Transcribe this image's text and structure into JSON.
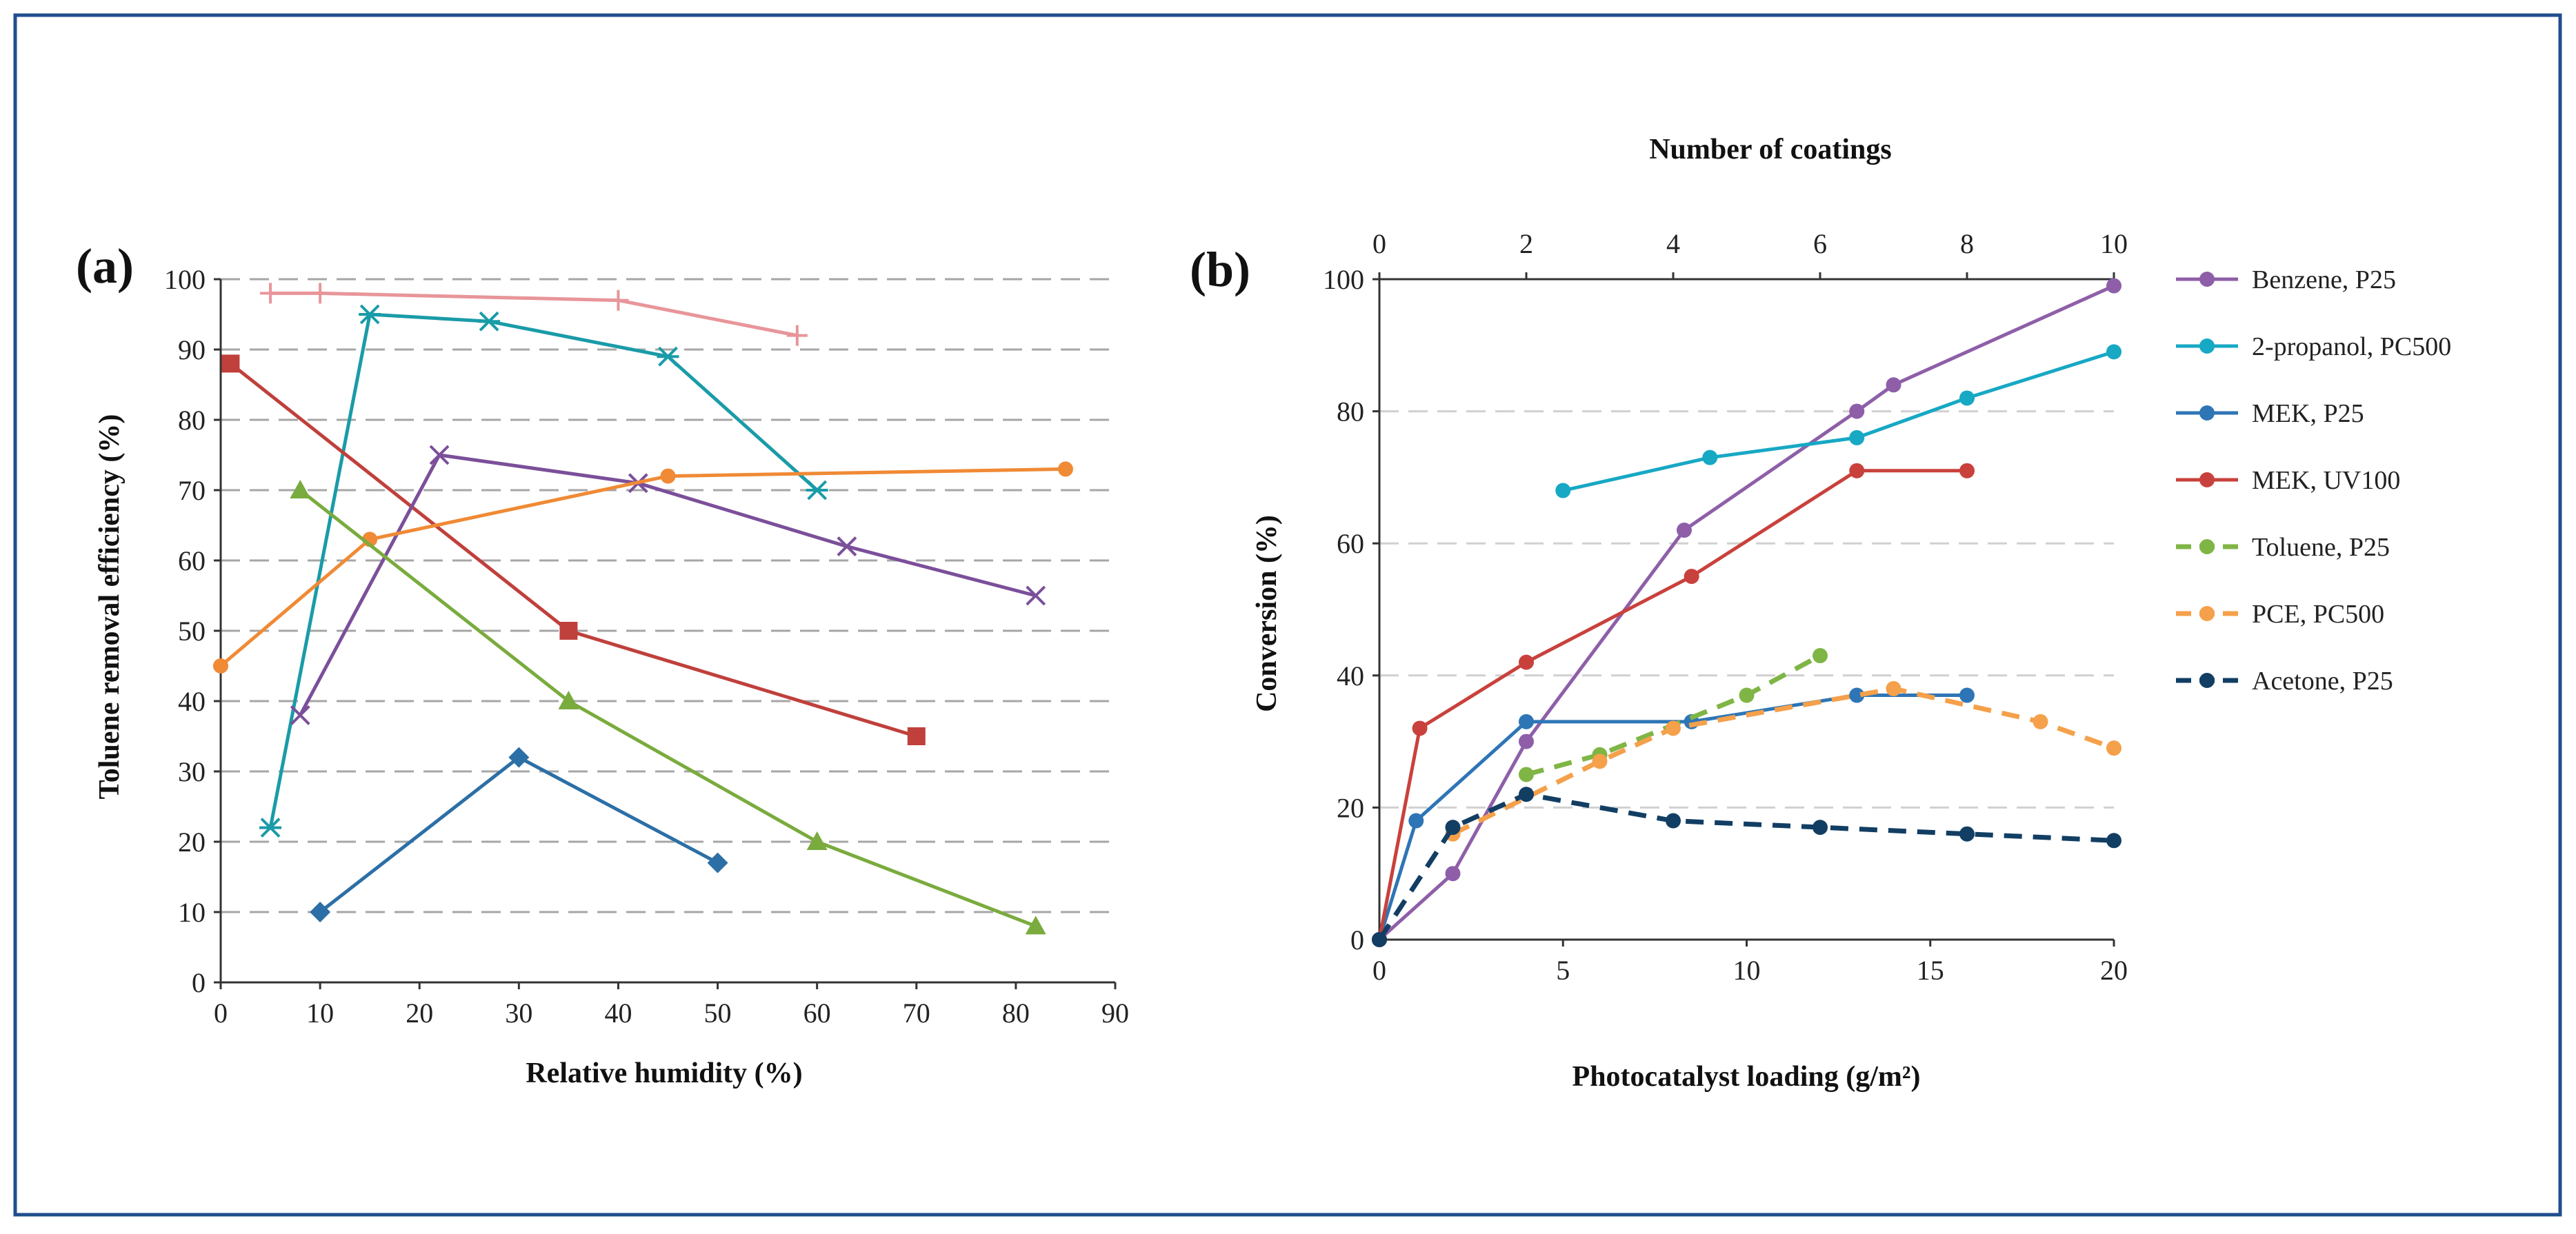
{
  "colors": {
    "frame": "#1f4e8c",
    "grid_a": "#a6a6a6",
    "grid_b": "#d0d0d0"
  },
  "chart_data": [
    {
      "panel_label": "(a)",
      "type": "line",
      "xlabel": "Relative humidity (%)",
      "ylabel": "Toluene removal efficiency (%)",
      "xlim": [
        0,
        90
      ],
      "ylim": [
        0,
        100
      ],
      "xticks": [
        0,
        10,
        20,
        30,
        40,
        50,
        60,
        70,
        80,
        90
      ],
      "yticks": [
        0,
        10,
        20,
        30,
        40,
        50,
        60,
        70,
        80,
        90,
        100
      ],
      "grid": "horizontal dashed",
      "legend": "none",
      "series": [
        {
          "name": "plus series",
          "color": "#e8959a",
          "marker": "plus",
          "dashed": false,
          "points": [
            [
              5,
              98
            ],
            [
              10,
              98
            ],
            [
              40,
              97
            ],
            [
              58,
              92
            ]
          ]
        },
        {
          "name": "asterisk series",
          "color": "#1a9ba8",
          "marker": "asterisk",
          "dashed": false,
          "points": [
            [
              5,
              22
            ],
            [
              15,
              95
            ],
            [
              27,
              94
            ],
            [
              45,
              89
            ],
            [
              60,
              70
            ]
          ]
        },
        {
          "name": "square series",
          "color": "#c0403c",
          "marker": "square",
          "dashed": false,
          "points": [
            [
              1,
              88
            ],
            [
              35,
              50
            ],
            [
              70,
              35
            ]
          ]
        },
        {
          "name": "cross series",
          "color": "#7b4f9a",
          "marker": "x",
          "dashed": false,
          "points": [
            [
              8,
              38
            ],
            [
              22,
              75
            ],
            [
              42,
              71
            ],
            [
              63,
              62
            ],
            [
              82,
              55
            ]
          ]
        },
        {
          "name": "circle series",
          "color": "#f08a35",
          "marker": "circle",
          "dashed": false,
          "points": [
            [
              0,
              45
            ],
            [
              15,
              63
            ],
            [
              45,
              72
            ],
            [
              85,
              73
            ]
          ]
        },
        {
          "name": "triangle series",
          "color": "#7aab3e",
          "marker": "triangle",
          "dashed": false,
          "points": [
            [
              8,
              70
            ],
            [
              35,
              40
            ],
            [
              60,
              20
            ],
            [
              82,
              8
            ]
          ]
        },
        {
          "name": "diamond series",
          "color": "#2c6fa6",
          "marker": "diamond",
          "dashed": false,
          "points": [
            [
              10,
              10
            ],
            [
              30,
              32
            ],
            [
              50,
              17
            ]
          ]
        }
      ]
    },
    {
      "panel_label": "(b)",
      "type": "line",
      "xlabel": "Photocatalyst loading (g/m²)",
      "x2label": "Number of coatings",
      "ylabel": "Conversion (%)",
      "xlim": [
        0,
        20
      ],
      "x2lim": [
        0,
        10
      ],
      "ylim": [
        0,
        100
      ],
      "xticks": [
        0,
        5,
        10,
        15,
        20
      ],
      "x2ticks": [
        0,
        2,
        4,
        6,
        8,
        10
      ],
      "yticks": [
        0,
        20,
        40,
        60,
        80,
        100
      ],
      "grid": "horizontal dashed",
      "legend": "right",
      "series": [
        {
          "name": "Benzene, P25",
          "color": "#8e5fa8",
          "marker": "circle",
          "dashed": false,
          "points": [
            [
              0,
              0
            ],
            [
              2,
              10
            ],
            [
              4,
              30
            ],
            [
              8.3,
              62
            ],
            [
              13,
              80
            ],
            [
              14,
              84
            ],
            [
              20,
              99
            ]
          ]
        },
        {
          "name": "2-propanol, PC500",
          "color": "#17a8c4",
          "marker": "circle",
          "dashed": false,
          "points": [
            [
              5,
              68
            ],
            [
              9,
              73
            ],
            [
              13,
              76
            ],
            [
              16,
              82
            ],
            [
              20,
              89
            ]
          ]
        },
        {
          "name": "MEK, P25",
          "color": "#2e75b6",
          "marker": "circle",
          "dashed": false,
          "points": [
            [
              0,
              0
            ],
            [
              1,
              18
            ],
            [
              4,
              33
            ],
            [
              8.5,
              33
            ],
            [
              13,
              37
            ],
            [
              16,
              37
            ]
          ]
        },
        {
          "name": "MEK, UV100",
          "color": "#c9413c",
          "marker": "circle",
          "dashed": false,
          "points": [
            [
              0,
              0
            ],
            [
              1.1,
              32
            ],
            [
              4,
              42
            ],
            [
              8.5,
              55
            ],
            [
              13,
              71
            ],
            [
              16,
              71
            ]
          ]
        },
        {
          "name": "Toluene, P25",
          "color": "#7fb545",
          "marker": "circle",
          "dashed": true,
          "points": [
            [
              4,
              25
            ],
            [
              6,
              28
            ],
            [
              10,
              37
            ],
            [
              12,
              43
            ]
          ]
        },
        {
          "name": "PCE, PC500",
          "color": "#f5a04a",
          "marker": "circle",
          "dashed": true,
          "points": [
            [
              2,
              16
            ],
            [
              6,
              27
            ],
            [
              8,
              32
            ],
            [
              14,
              38
            ],
            [
              18,
              33
            ],
            [
              20,
              29
            ]
          ]
        },
        {
          "name": "Acetone, P25",
          "color": "#123e63",
          "marker": "circle",
          "dashed": true,
          "points": [
            [
              0,
              0
            ],
            [
              2,
              17
            ],
            [
              4,
              22
            ],
            [
              8,
              18
            ],
            [
              12,
              17
            ],
            [
              16,
              16
            ],
            [
              20,
              15
            ]
          ]
        }
      ]
    }
  ]
}
